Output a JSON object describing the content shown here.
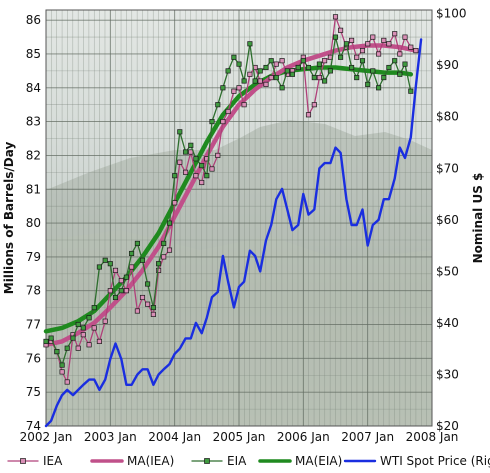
{
  "chart_data": {
    "type": "line",
    "xlabel": "",
    "ylabel": "Millions of Barrels/Day",
    "ylabel_right": "Nominal US $",
    "xlim": [
      2002.0,
      2008.0
    ],
    "ylim": [
      74,
      86.3
    ],
    "ylim_right": [
      20,
      100.7
    ],
    "x_ticks": [
      2002,
      2003,
      2004,
      2005,
      2006,
      2007,
      2008
    ],
    "x_tick_labels": [
      "2002 Jan",
      "2003 Jan",
      "2004 Jan",
      "2005 Jan",
      "2006 Jan",
      "2007 Jan",
      "2008 Jan"
    ],
    "y_ticks": [
      74,
      75,
      76,
      77,
      78,
      79,
      80,
      81,
      82,
      83,
      84,
      85,
      86
    ],
    "y_tick_labels": [
      "74",
      "75",
      "76",
      "77",
      "78",
      "79",
      "80",
      "81",
      "82",
      "83",
      "84",
      "85",
      "86"
    ],
    "y_right_ticks": [
      20,
      30,
      40,
      50,
      60,
      70,
      80,
      90,
      100
    ],
    "y_right_tick_labels": [
      "$20",
      "$30",
      "$40",
      "$50",
      "$60",
      "$70",
      "$80",
      "$90",
      "$100"
    ],
    "grid": true,
    "legend_position": "bottom",
    "colors": {
      "iea": "#b0407a",
      "ma_iea": "#c0508a",
      "eia": "#2d6e2d",
      "ma_eia": "#1f8a1f",
      "wti": "#1a2ee0",
      "background_sky": "#d7ddd9",
      "background_land": "#aab3a8"
    },
    "series": [
      {
        "name": "IEA",
        "axis": "left",
        "marker": "square",
        "points": [
          [
            2002.0,
            76.4
          ],
          [
            2002.08,
            76.5
          ],
          [
            2002.17,
            76.2
          ],
          [
            2002.25,
            75.6
          ],
          [
            2002.33,
            75.3
          ],
          [
            2002.42,
            76.7
          ],
          [
            2002.5,
            76.3
          ],
          [
            2002.58,
            76.7
          ],
          [
            2002.67,
            76.4
          ],
          [
            2002.75,
            76.9
          ],
          [
            2002.83,
            76.5
          ],
          [
            2002.92,
            77.1
          ],
          [
            2003.0,
            78.0
          ],
          [
            2003.08,
            78.6
          ],
          [
            2003.17,
            78.3
          ],
          [
            2003.25,
            78.0
          ],
          [
            2003.33,
            78.7
          ],
          [
            2003.42,
            77.4
          ],
          [
            2003.5,
            77.8
          ],
          [
            2003.58,
            77.6
          ],
          [
            2003.67,
            77.3
          ],
          [
            2003.75,
            78.6
          ],
          [
            2003.83,
            79.0
          ],
          [
            2003.92,
            79.2
          ],
          [
            2004.0,
            80.6
          ],
          [
            2004.08,
            81.8
          ],
          [
            2004.17,
            81.5
          ],
          [
            2004.25,
            82.1
          ],
          [
            2004.33,
            81.4
          ],
          [
            2004.42,
            81.2
          ],
          [
            2004.5,
            81.9
          ],
          [
            2004.58,
            81.6
          ],
          [
            2004.67,
            82.0
          ],
          [
            2004.75,
            83.0
          ],
          [
            2004.83,
            83.3
          ],
          [
            2004.92,
            83.9
          ],
          [
            2005.0,
            84.0
          ],
          [
            2005.08,
            83.5
          ],
          [
            2005.17,
            84.4
          ],
          [
            2005.25,
            84.6
          ],
          [
            2005.33,
            84.2
          ],
          [
            2005.42,
            84.1
          ],
          [
            2005.5,
            84.3
          ],
          [
            2005.58,
            84.7
          ],
          [
            2005.67,
            84.8
          ],
          [
            2005.75,
            84.4
          ],
          [
            2005.83,
            84.5
          ],
          [
            2005.92,
            84.6
          ],
          [
            2006.0,
            84.9
          ],
          [
            2006.08,
            83.2
          ],
          [
            2006.17,
            83.5
          ],
          [
            2006.25,
            84.3
          ],
          [
            2006.33,
            84.8
          ],
          [
            2006.42,
            84.9
          ],
          [
            2006.5,
            86.1
          ],
          [
            2006.58,
            85.7
          ],
          [
            2006.67,
            85.2
          ],
          [
            2006.75,
            85.4
          ],
          [
            2006.83,
            84.9
          ],
          [
            2006.92,
            85.1
          ],
          [
            2007.0,
            85.3
          ],
          [
            2007.08,
            85.5
          ],
          [
            2007.17,
            85.0
          ],
          [
            2007.25,
            85.4
          ],
          [
            2007.33,
            85.3
          ],
          [
            2007.42,
            85.6
          ],
          [
            2007.5,
            85.0
          ],
          [
            2007.58,
            85.5
          ],
          [
            2007.67,
            85.2
          ],
          [
            2007.75,
            85.1
          ]
        ]
      },
      {
        "name": "MA(IEA)",
        "axis": "left",
        "marker": "none",
        "points": [
          [
            2002.0,
            76.4
          ],
          [
            2002.25,
            76.5
          ],
          [
            2002.5,
            76.75
          ],
          [
            2002.75,
            77.05
          ],
          [
            2003.0,
            77.5
          ],
          [
            2003.25,
            78.0
          ],
          [
            2003.5,
            78.6
          ],
          [
            2003.75,
            79.3
          ],
          [
            2004.0,
            80.2
          ],
          [
            2004.25,
            81.1
          ],
          [
            2004.5,
            82.0
          ],
          [
            2004.75,
            82.85
          ],
          [
            2005.0,
            83.5
          ],
          [
            2005.25,
            83.95
          ],
          [
            2005.5,
            84.3
          ],
          [
            2005.75,
            84.6
          ],
          [
            2006.0,
            84.8
          ],
          [
            2006.25,
            84.95
          ],
          [
            2006.5,
            85.1
          ],
          [
            2006.75,
            85.2
          ],
          [
            2007.0,
            85.25
          ],
          [
            2007.25,
            85.25
          ],
          [
            2007.5,
            85.2
          ],
          [
            2007.75,
            85.1
          ]
        ]
      },
      {
        "name": "EIA",
        "axis": "left",
        "marker": "square",
        "points": [
          [
            2002.0,
            76.5
          ],
          [
            2002.08,
            76.6
          ],
          [
            2002.17,
            76.2
          ],
          [
            2002.25,
            75.8
          ],
          [
            2002.33,
            76.3
          ],
          [
            2002.42,
            76.6
          ],
          [
            2002.5,
            77.0
          ],
          [
            2002.58,
            76.9
          ],
          [
            2002.67,
            77.2
          ],
          [
            2002.75,
            77.5
          ],
          [
            2002.83,
            78.7
          ],
          [
            2002.92,
            78.9
          ],
          [
            2003.0,
            78.8
          ],
          [
            2003.08,
            77.8
          ],
          [
            2003.17,
            78.0
          ],
          [
            2003.25,
            78.4
          ],
          [
            2003.33,
            79.1
          ],
          [
            2003.42,
            79.4
          ],
          [
            2003.5,
            78.9
          ],
          [
            2003.58,
            78.2
          ],
          [
            2003.67,
            77.5
          ],
          [
            2003.75,
            78.8
          ],
          [
            2003.83,
            79.4
          ],
          [
            2003.92,
            80.0
          ],
          [
            2004.0,
            81.4
          ],
          [
            2004.08,
            82.7
          ],
          [
            2004.17,
            82.1
          ],
          [
            2004.25,
            82.3
          ],
          [
            2004.33,
            81.9
          ],
          [
            2004.42,
            81.7
          ],
          [
            2004.5,
            81.4
          ],
          [
            2004.58,
            83.0
          ],
          [
            2004.67,
            83.5
          ],
          [
            2004.75,
            84.0
          ],
          [
            2004.83,
            84.5
          ],
          [
            2004.92,
            84.9
          ],
          [
            2005.0,
            84.7
          ],
          [
            2005.08,
            84.2
          ],
          [
            2005.17,
            85.3
          ],
          [
            2005.25,
            84.2
          ],
          [
            2005.33,
            84.5
          ],
          [
            2005.42,
            84.6
          ],
          [
            2005.5,
            84.8
          ],
          [
            2005.58,
            84.3
          ],
          [
            2005.67,
            84.0
          ],
          [
            2005.75,
            84.5
          ],
          [
            2005.83,
            84.4
          ],
          [
            2005.92,
            84.6
          ],
          [
            2006.0,
            84.8
          ],
          [
            2006.08,
            84.6
          ],
          [
            2006.17,
            84.3
          ],
          [
            2006.25,
            84.7
          ],
          [
            2006.33,
            84.2
          ],
          [
            2006.42,
            84.5
          ],
          [
            2006.5,
            85.5
          ],
          [
            2006.58,
            84.9
          ],
          [
            2006.67,
            85.3
          ],
          [
            2006.75,
            84.6
          ],
          [
            2006.83,
            84.3
          ],
          [
            2006.92,
            84.8
          ],
          [
            2007.0,
            84.1
          ],
          [
            2007.08,
            84.5
          ],
          [
            2007.17,
            84.0
          ],
          [
            2007.25,
            84.3
          ],
          [
            2007.33,
            84.6
          ],
          [
            2007.42,
            84.8
          ],
          [
            2007.5,
            84.4
          ],
          [
            2007.58,
            84.7
          ],
          [
            2007.67,
            83.9
          ]
        ]
      },
      {
        "name": "MA(EIA)",
        "axis": "left",
        "marker": "none",
        "points": [
          [
            2002.0,
            76.8
          ],
          [
            2002.25,
            76.9
          ],
          [
            2002.5,
            77.1
          ],
          [
            2002.75,
            77.4
          ],
          [
            2003.0,
            77.9
          ],
          [
            2003.25,
            78.4
          ],
          [
            2003.5,
            79.0
          ],
          [
            2003.75,
            79.7
          ],
          [
            2004.0,
            80.6
          ],
          [
            2004.25,
            81.5
          ],
          [
            2004.5,
            82.4
          ],
          [
            2004.75,
            83.2
          ],
          [
            2005.0,
            83.75
          ],
          [
            2005.25,
            84.1
          ],
          [
            2005.5,
            84.35
          ],
          [
            2005.75,
            84.5
          ],
          [
            2006.0,
            84.55
          ],
          [
            2006.25,
            84.6
          ],
          [
            2006.5,
            84.6
          ],
          [
            2006.75,
            84.55
          ],
          [
            2007.0,
            84.5
          ],
          [
            2007.25,
            84.45
          ],
          [
            2007.5,
            84.45
          ],
          [
            2007.67,
            84.4
          ]
        ]
      },
      {
        "name": "WTI Spot Price (Right)",
        "axis": "right",
        "marker": "none",
        "points": [
          [
            2002.0,
            20
          ],
          [
            2002.08,
            21
          ],
          [
            2002.17,
            24
          ],
          [
            2002.25,
            26
          ],
          [
            2002.33,
            27
          ],
          [
            2002.42,
            26
          ],
          [
            2002.5,
            27
          ],
          [
            2002.58,
            28
          ],
          [
            2002.67,
            29
          ],
          [
            2002.75,
            29
          ],
          [
            2002.83,
            27
          ],
          [
            2002.92,
            29
          ],
          [
            2003.0,
            33
          ],
          [
            2003.08,
            36
          ],
          [
            2003.17,
            33
          ],
          [
            2003.25,
            28
          ],
          [
            2003.33,
            28
          ],
          [
            2003.42,
            30
          ],
          [
            2003.5,
            31
          ],
          [
            2003.58,
            31
          ],
          [
            2003.67,
            28
          ],
          [
            2003.75,
            30
          ],
          [
            2003.83,
            31
          ],
          [
            2003.92,
            32
          ],
          [
            2004.0,
            34
          ],
          [
            2004.08,
            35
          ],
          [
            2004.17,
            37
          ],
          [
            2004.25,
            37
          ],
          [
            2004.33,
            40
          ],
          [
            2004.42,
            38
          ],
          [
            2004.5,
            41
          ],
          [
            2004.58,
            45
          ],
          [
            2004.67,
            46
          ],
          [
            2004.75,
            53
          ],
          [
            2004.83,
            48
          ],
          [
            2004.92,
            43
          ],
          [
            2005.0,
            47
          ],
          [
            2005.08,
            48
          ],
          [
            2005.17,
            54
          ],
          [
            2005.25,
            53
          ],
          [
            2005.33,
            50
          ],
          [
            2005.42,
            56
          ],
          [
            2005.5,
            59
          ],
          [
            2005.58,
            64
          ],
          [
            2005.67,
            66
          ],
          [
            2005.75,
            62
          ],
          [
            2005.83,
            58
          ],
          [
            2005.92,
            59
          ],
          [
            2006.0,
            65
          ],
          [
            2006.08,
            61
          ],
          [
            2006.17,
            62
          ],
          [
            2006.25,
            70
          ],
          [
            2006.33,
            71
          ],
          [
            2006.42,
            71
          ],
          [
            2006.5,
            74
          ],
          [
            2006.58,
            73
          ],
          [
            2006.67,
            64
          ],
          [
            2006.75,
            59
          ],
          [
            2006.83,
            59
          ],
          [
            2006.92,
            62
          ],
          [
            2007.0,
            55
          ],
          [
            2007.08,
            59
          ],
          [
            2007.17,
            60
          ],
          [
            2007.25,
            64
          ],
          [
            2007.33,
            64
          ],
          [
            2007.42,
            68
          ],
          [
            2007.5,
            74
          ],
          [
            2007.58,
            72
          ],
          [
            2007.67,
            76
          ],
          [
            2007.75,
            86
          ],
          [
            2007.83,
            95
          ]
        ]
      }
    ]
  }
}
